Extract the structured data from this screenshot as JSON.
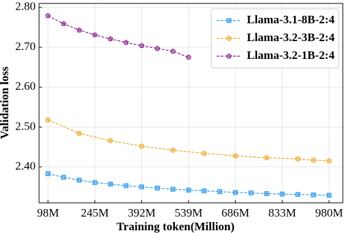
{
  "chart_data": {
    "type": "line",
    "xlabel": "Training token(Million)",
    "ylabel": "Validation loss",
    "xlim": [
      70,
      1023
    ],
    "ylim": [
      2.31,
      2.81
    ],
    "xticks": [
      {
        "value": 98,
        "label": "98M"
      },
      {
        "value": 245,
        "label": "245M"
      },
      {
        "value": 392,
        "label": "392M"
      },
      {
        "value": 539,
        "label": "539M"
      },
      {
        "value": 686,
        "label": "686M"
      },
      {
        "value": 833,
        "label": "833M"
      },
      {
        "value": 980,
        "label": "980M"
      }
    ],
    "yticks": [
      {
        "value": 2.4,
        "label": "2.40"
      },
      {
        "value": 2.5,
        "label": "2.50"
      },
      {
        "value": 2.6,
        "label": "2.60"
      },
      {
        "value": 2.7,
        "label": "2.70"
      },
      {
        "value": 2.8,
        "label": "2.80"
      }
    ],
    "grid": true,
    "legend": "upper right",
    "series": [
      {
        "name": "Llama-3.1-8B-2:4",
        "color": "#2f9bf0",
        "marker": "square",
        "x": [
          98,
          147,
          196,
          245,
          294,
          343,
          392,
          441,
          490,
          539,
          588,
          637,
          686,
          735,
          784,
          833,
          882,
          931,
          980
        ],
        "values": [
          2.383,
          2.374,
          2.367,
          2.361,
          2.357,
          2.353,
          2.35,
          2.347,
          2.344,
          2.342,
          2.34,
          2.338,
          2.336,
          2.335,
          2.333,
          2.332,
          2.331,
          2.33,
          2.329
        ]
      },
      {
        "name": "Llama-3.2-3B-2:4",
        "color": "#f5a623",
        "marker": "circle",
        "x": [
          98,
          196,
          294,
          392,
          490,
          588,
          686,
          784,
          882,
          931,
          980
        ],
        "values": [
          2.518,
          2.484,
          2.466,
          2.452,
          2.442,
          2.434,
          2.428,
          2.423,
          2.42,
          2.417,
          2.415
        ]
      },
      {
        "name": "Llama-3.2-1B-2:4",
        "color": "#8e1f8e",
        "marker": "pentagon",
        "x": [
          98,
          147,
          196,
          245,
          294,
          343,
          392,
          441,
          490,
          539
        ],
        "values": [
          2.779,
          2.759,
          2.743,
          2.731,
          2.721,
          2.712,
          2.704,
          2.697,
          2.69,
          2.675
        ]
      }
    ]
  }
}
